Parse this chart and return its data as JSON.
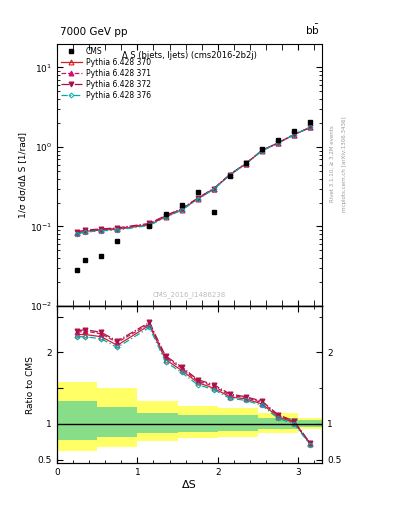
{
  "title_left": "7000 GeV pp",
  "title_right": "b$\\bar{b}$",
  "plot_title": "Δ S (bjets, ljets) (cms2016-2b2j)",
  "ylabel_main": "1/σ dσ/dΔ S [1/rad]",
  "ylabel_ratio": "Ratio to CMS",
  "xlabel": "ΔS",
  "right_label1": "Rivet 3.1.10, ≥ 3.2M events",
  "right_label2": "mcplots.cern.ch [arXiv:1306.3436]",
  "watermark": "CMS_2016_I1486238",
  "cms_x": [
    0.25,
    0.35,
    0.55,
    0.75,
    1.15,
    1.35,
    1.55,
    1.75,
    1.95,
    2.15,
    2.35,
    2.55,
    2.75,
    2.95,
    3.15
  ],
  "cms_y": [
    0.028,
    0.038,
    0.042,
    0.065,
    0.1,
    0.145,
    0.185,
    0.27,
    0.15,
    0.43,
    0.62,
    0.95,
    1.22,
    1.6,
    2.05
  ],
  "py370_x": [
    0.25,
    0.35,
    0.55,
    0.75,
    1.15,
    1.35,
    1.55,
    1.75,
    1.95,
    2.15,
    2.35,
    2.55,
    2.75,
    2.95,
    3.15
  ],
  "py370_y": [
    0.082,
    0.087,
    0.09,
    0.092,
    0.105,
    0.132,
    0.162,
    0.222,
    0.295,
    0.445,
    0.615,
    0.9,
    1.12,
    1.43,
    1.76
  ],
  "py371_x": [
    0.25,
    0.35,
    0.55,
    0.75,
    1.15,
    1.35,
    1.55,
    1.75,
    1.95,
    2.15,
    2.35,
    2.55,
    2.75,
    2.95,
    3.15
  ],
  "py371_y": [
    0.083,
    0.088,
    0.091,
    0.094,
    0.107,
    0.135,
    0.165,
    0.225,
    0.298,
    0.448,
    0.618,
    0.903,
    1.123,
    1.433,
    1.763
  ],
  "py372_x": [
    0.25,
    0.35,
    0.55,
    0.75,
    1.15,
    1.35,
    1.55,
    1.75,
    1.95,
    2.15,
    2.35,
    2.55,
    2.75,
    2.95,
    3.15
  ],
  "py372_y": [
    0.085,
    0.09,
    0.093,
    0.096,
    0.109,
    0.137,
    0.167,
    0.227,
    0.3,
    0.45,
    0.62,
    0.905,
    1.125,
    1.435,
    1.765
  ],
  "py376_x": [
    0.25,
    0.35,
    0.55,
    0.75,
    1.15,
    1.35,
    1.55,
    1.75,
    1.95,
    2.15,
    2.35,
    2.55,
    2.75,
    2.95,
    3.15
  ],
  "py376_y": [
    0.08,
    0.085,
    0.088,
    0.09,
    0.103,
    0.13,
    0.16,
    0.22,
    0.293,
    0.443,
    0.613,
    0.898,
    1.118,
    1.428,
    1.758
  ],
  "ratio_x": [
    0.25,
    0.35,
    0.55,
    0.75,
    1.15,
    1.35,
    1.55,
    1.75,
    1.95,
    2.15,
    2.35,
    2.55,
    2.75,
    2.95,
    3.15
  ],
  "ratio370_y": [
    2.25,
    2.25,
    2.22,
    2.1,
    2.38,
    1.9,
    1.75,
    1.58,
    1.5,
    1.38,
    1.35,
    1.28,
    1.1,
    1.02,
    0.72
  ],
  "ratio371_y": [
    2.28,
    2.3,
    2.26,
    2.14,
    2.4,
    1.93,
    1.78,
    1.6,
    1.53,
    1.4,
    1.37,
    1.3,
    1.12,
    1.03,
    0.73
  ],
  "ratio372_y": [
    2.3,
    2.32,
    2.28,
    2.16,
    2.42,
    1.95,
    1.8,
    1.62,
    1.55,
    1.42,
    1.38,
    1.32,
    1.13,
    1.04,
    0.73
  ],
  "ratio376_y": [
    2.22,
    2.22,
    2.19,
    2.07,
    2.35,
    1.87,
    1.72,
    1.55,
    1.48,
    1.36,
    1.33,
    1.26,
    1.08,
    1.0,
    0.71
  ],
  "yband_edges": [
    0.0,
    0.5,
    1.0,
    1.5,
    2.0,
    2.5,
    3.0,
    3.3
  ],
  "green_lo": [
    0.78,
    0.82,
    0.87,
    0.89,
    0.9,
    0.93,
    0.96,
    0.97
  ],
  "green_hi": [
    1.32,
    1.24,
    1.16,
    1.13,
    1.12,
    1.08,
    1.05,
    1.04
  ],
  "yellow_lo": [
    0.62,
    0.68,
    0.76,
    0.8,
    0.82,
    0.88,
    0.93,
    0.95
  ],
  "yellow_hi": [
    1.58,
    1.5,
    1.32,
    1.25,
    1.22,
    1.15,
    1.08,
    1.06
  ],
  "color_370": "#cc2222",
  "color_371": "#cc1166",
  "color_372": "#aa1144",
  "color_376": "#00aaaa",
  "bg_color": "#ffffff"
}
